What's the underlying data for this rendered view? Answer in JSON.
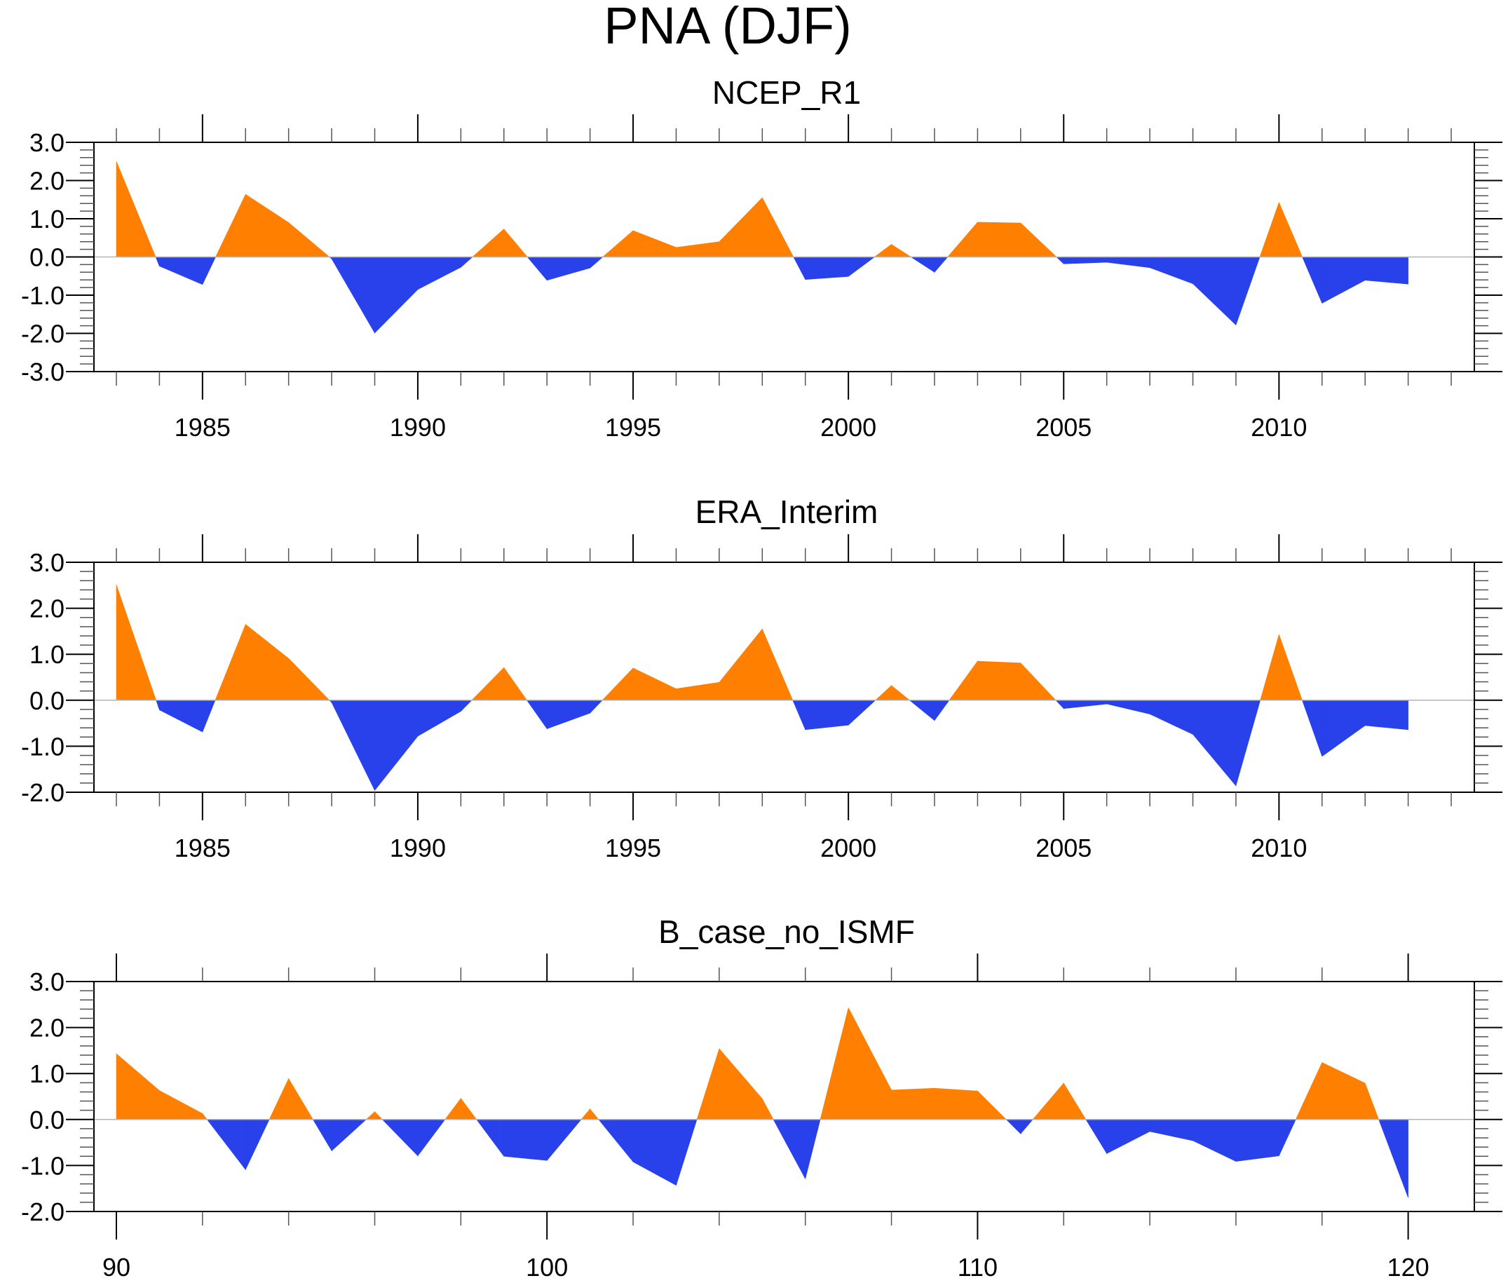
{
  "figure": {
    "title": "PNA (DJF)"
  },
  "colors": {
    "positive": "#ff8000",
    "negative": "#2841ea",
    "axis": "#000000",
    "zero_line": "#b4b4b4"
  },
  "chart_data": [
    {
      "type": "area",
      "title": "NCEP_R1",
      "xlabel": "",
      "ylabel": "",
      "ylim": [
        -3.0,
        3.0
      ],
      "yticks": [
        3.0,
        2.0,
        1.0,
        0.0,
        -1.0,
        -2.0,
        -3.0
      ],
      "ytick_labels": [
        "3.0",
        "2.0",
        "1.0",
        "0.0",
        "-1.0",
        "-2.0",
        "-3.0"
      ],
      "xlim": [
        1982,
        2014
      ],
      "xticks_major": [
        1985,
        1990,
        1995,
        2000,
        2005,
        2010
      ],
      "xtick_labels": [
        "1985",
        "1990",
        "1995",
        "2000",
        "2005",
        "2010"
      ],
      "xticks_minor_step": 1,
      "grid": false,
      "fill_above_zero": "positive",
      "fill_below_zero": "negative",
      "x": [
        1983,
        1984,
        1985,
        1986,
        1987,
        1988,
        1989,
        1990,
        1991,
        1992,
        1993,
        1994,
        1995,
        1996,
        1997,
        1998,
        1999,
        2000,
        2001,
        2002,
        2003,
        2004,
        2005,
        2006,
        2007,
        2008,
        2009,
        2010,
        2011,
        2012,
        2013
      ],
      "values": [
        2.5,
        -0.24,
        -0.72,
        1.64,
        0.9,
        -0.05,
        -1.99,
        -0.85,
        -0.27,
        0.73,
        -0.61,
        -0.29,
        0.69,
        0.25,
        0.4,
        1.55,
        -0.59,
        -0.51,
        0.33,
        -0.4,
        0.91,
        0.89,
        -0.18,
        -0.14,
        -0.28,
        -0.7,
        -1.78,
        1.43,
        -1.21,
        -0.61,
        -0.71
      ]
    },
    {
      "type": "area",
      "title": "ERA_Interim",
      "xlabel": "",
      "ylabel": "",
      "ylim": [
        -2.0,
        3.0
      ],
      "yticks": [
        3.0,
        2.0,
        1.0,
        0.0,
        -1.0,
        -2.0
      ],
      "ytick_labels": [
        "3.0",
        "2.0",
        "1.0",
        "0.0",
        "-1.0",
        "-2.0"
      ],
      "xlim": [
        1982,
        2014
      ],
      "xticks_major": [
        1985,
        1990,
        1995,
        2000,
        2005,
        2010
      ],
      "xtick_labels": [
        "1985",
        "1990",
        "1995",
        "2000",
        "2005",
        "2010"
      ],
      "xticks_minor_step": 1,
      "grid": false,
      "fill_above_zero": "positive",
      "fill_below_zero": "negative",
      "x": [
        1983,
        1984,
        1985,
        1986,
        1987,
        1988,
        1989,
        1990,
        1991,
        1992,
        1993,
        1994,
        1995,
        1996,
        1997,
        1998,
        1999,
        2000,
        2001,
        2002,
        2003,
        2004,
        2005,
        2006,
        2007,
        2008,
        2009,
        2010,
        2011,
        2012,
        2013
      ],
      "values": [
        2.51,
        -0.21,
        -0.69,
        1.65,
        0.91,
        -0.05,
        -1.96,
        -0.78,
        -0.24,
        0.71,
        -0.62,
        -0.28,
        0.7,
        0.25,
        0.39,
        1.55,
        -0.64,
        -0.54,
        0.32,
        -0.44,
        0.85,
        0.81,
        -0.18,
        -0.08,
        -0.3,
        -0.74,
        -1.86,
        1.43,
        -1.22,
        -0.55,
        -0.64
      ]
    },
    {
      "type": "area",
      "title": "B_case_no_ISMF",
      "xlabel": "",
      "ylabel": "",
      "ylim": [
        -2.0,
        3.0
      ],
      "yticks": [
        3.0,
        2.0,
        1.0,
        0.0,
        -1.0,
        -2.0
      ],
      "ytick_labels": [
        "3.0",
        "2.0",
        "1.0",
        "0.0",
        "-1.0",
        "-2.0"
      ],
      "xlim": [
        90,
        121.5
      ],
      "xticks_major": [
        90,
        100,
        110,
        120
      ],
      "xtick_labels": [
        "90",
        "100",
        "110",
        "120"
      ],
      "xticks_minor_step": 2,
      "grid": false,
      "fill_above_zero": "positive",
      "fill_below_zero": "negative",
      "x": [
        90,
        91,
        92,
        93,
        94,
        95,
        96,
        97,
        98,
        99,
        100,
        101,
        102,
        103,
        104,
        105,
        106,
        107,
        108,
        109,
        110,
        111,
        112,
        113,
        114,
        115,
        116,
        117,
        118,
        119,
        120
      ],
      "values": [
        1.43,
        0.63,
        0.13,
        -1.09,
        0.89,
        -0.68,
        0.17,
        -0.79,
        0.46,
        -0.8,
        -0.89,
        0.23,
        -0.92,
        -1.43,
        1.54,
        0.45,
        -1.29,
        2.43,
        0.64,
        0.68,
        0.62,
        -0.31,
        0.79,
        -0.74,
        -0.26,
        -0.46,
        -0.91,
        -0.79,
        1.24,
        0.79,
        -1.7
      ]
    }
  ]
}
